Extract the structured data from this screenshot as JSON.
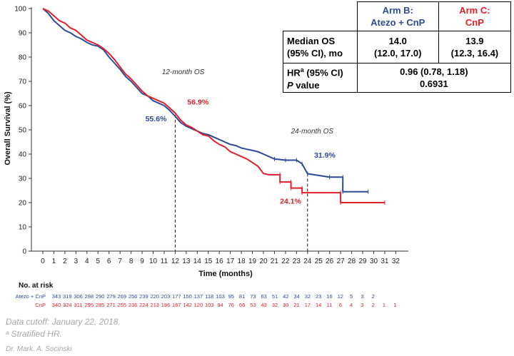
{
  "chart_data": {
    "type": "line",
    "ylabel": "Overall Survival (%)",
    "xlabel": "Time (months)",
    "xlim": [
      0,
      32
    ],
    "ylim": [
      0,
      100
    ],
    "x_ticks": [
      0,
      1,
      2,
      3,
      4,
      5,
      6,
      7,
      8,
      9,
      10,
      11,
      12,
      13,
      14,
      15,
      16,
      17,
      18,
      19,
      20,
      21,
      22,
      23,
      24,
      25,
      26,
      27,
      28,
      29,
      30,
      31,
      32
    ],
    "y_ticks": [
      0,
      10,
      20,
      30,
      40,
      50,
      60,
      70,
      80,
      90,
      100
    ],
    "series": [
      {
        "name": "Atezo + CnP",
        "color": "#2e4a9a",
        "points": [
          [
            0,
            100
          ],
          [
            0.5,
            98
          ],
          [
            1,
            95
          ],
          [
            1.5,
            93
          ],
          [
            2,
            91
          ],
          [
            2.5,
            90
          ],
          [
            3,
            88.5
          ],
          [
            3.5,
            87.5
          ],
          [
            4,
            86
          ],
          [
            4.5,
            85
          ],
          [
            5,
            84.5
          ],
          [
            5.5,
            83
          ],
          [
            6,
            80
          ],
          [
            6.5,
            77.5
          ],
          [
            7,
            75
          ],
          [
            7.5,
            72
          ],
          [
            8,
            70
          ],
          [
            8.5,
            67.5
          ],
          [
            9,
            65
          ],
          [
            9.5,
            64
          ],
          [
            10,
            62
          ],
          [
            10.5,
            61
          ],
          [
            11,
            60
          ],
          [
            11.5,
            58
          ],
          [
            12,
            55.6
          ],
          [
            12.5,
            53
          ],
          [
            13,
            51.5
          ],
          [
            13.5,
            50.5
          ],
          [
            14,
            49.5
          ],
          [
            14.5,
            48.5
          ],
          [
            15,
            48
          ],
          [
            15.5,
            47
          ],
          [
            16,
            46
          ],
          [
            16.5,
            45
          ],
          [
            17,
            44
          ],
          [
            17.5,
            43.5
          ],
          [
            18,
            42.5
          ],
          [
            18.5,
            42
          ],
          [
            19,
            41.5
          ],
          [
            19.5,
            41
          ],
          [
            20,
            40
          ],
          [
            20.5,
            39
          ],
          [
            21,
            38
          ],
          [
            22,
            37.5
          ],
          [
            23,
            37.5
          ],
          [
            23.5,
            36
          ],
          [
            24,
            31.9
          ],
          [
            26,
            30.5
          ],
          [
            27.2,
            30.5
          ],
          [
            27.2,
            24.5
          ],
          [
            29.5,
            24.5
          ]
        ]
      },
      {
        "name": "CnP",
        "color": "#e0202a",
        "points": [
          [
            0,
            100
          ],
          [
            0.5,
            99
          ],
          [
            1,
            97
          ],
          [
            1.5,
            95
          ],
          [
            2,
            94
          ],
          [
            2.5,
            92
          ],
          [
            3,
            91
          ],
          [
            3.5,
            89
          ],
          [
            4,
            87
          ],
          [
            4.5,
            86
          ],
          [
            5,
            85
          ],
          [
            5.5,
            83.5
          ],
          [
            6,
            81.5
          ],
          [
            6.5,
            79
          ],
          [
            7,
            76
          ],
          [
            7.5,
            73
          ],
          [
            8,
            71
          ],
          [
            8.5,
            68.5
          ],
          [
            9,
            66
          ],
          [
            9.5,
            64
          ],
          [
            10,
            63
          ],
          [
            10.5,
            62
          ],
          [
            11,
            61
          ],
          [
            11.5,
            59
          ],
          [
            12,
            56.9
          ],
          [
            12.5,
            54
          ],
          [
            13,
            52
          ],
          [
            13.5,
            51
          ],
          [
            14,
            49.5
          ],
          [
            14.5,
            48
          ],
          [
            15,
            47.5
          ],
          [
            15.5,
            45.5
          ],
          [
            16,
            44
          ],
          [
            16.5,
            43
          ],
          [
            17,
            41
          ],
          [
            17.5,
            40
          ],
          [
            18,
            39
          ],
          [
            18.5,
            38
          ],
          [
            19,
            36.5
          ],
          [
            19.5,
            35
          ],
          [
            20,
            32
          ],
          [
            20.5,
            31.5
          ],
          [
            21.5,
            31.5
          ],
          [
            21.5,
            28.5
          ],
          [
            22.5,
            28.5
          ],
          [
            22.5,
            26
          ],
          [
            23.5,
            26
          ],
          [
            23.5,
            24.1
          ],
          [
            27,
            24.1
          ],
          [
            27,
            20
          ],
          [
            31,
            20
          ]
        ]
      }
    ],
    "annotations": {
      "os12_label": "12-month OS",
      "os24_label": "24-month OS",
      "b_12": "55.6%",
      "c_12": "56.9%",
      "b_24": "31.9%",
      "c_24": "24.1%"
    },
    "risk_table": {
      "title": "No. at risk",
      "rows": [
        {
          "label": "Atezo + CnP",
          "color": "#2e4a9a",
          "values": [
            "343",
            "319",
            "306",
            "298",
            "290",
            "279",
            "269",
            "256",
            "239",
            "220",
            "203",
            "177",
            "150",
            "137",
            "118",
            "103",
            "95",
            "81",
            "73",
            "63",
            "51",
            "42",
            "34",
            "32",
            "23",
            "16",
            "12",
            "5",
            "3",
            "2"
          ]
        },
        {
          "label": "CnP",
          "color": "#e0202a",
          "values": [
            "340",
            "324",
            "311",
            "295",
            "285",
            "271",
            "255",
            "236",
            "224",
            "213",
            "196",
            "167",
            "142",
            "120",
            "103",
            "94",
            "76",
            "66",
            "53",
            "43",
            "32",
            "30",
            "21",
            "17",
            "14",
            "11",
            "6",
            "4",
            "3",
            "2",
            "1",
            "1"
          ]
        }
      ]
    }
  },
  "table": {
    "armB_line1": "Arm B:",
    "armB_line2": "Atezo + CnP",
    "armC_line1": "Arm C:",
    "armC_line2": "CnP",
    "row1_label_1": "Median OS",
    "row1_label_2": "(95% CI), mo",
    "row1_b_1": "14.0",
    "row1_b_2": "(12.0, 17.0)",
    "row1_c_1": "13.9",
    "row1_c_2": "(12.3, 16.4)",
    "row2_label_1a": "HR",
    "row2_label_1sup": "a",
    "row2_label_1b": " (95% CI)",
    "row2_label_2": "P",
    "row2_label_2b": " value",
    "row2_val_1": "0.96 (0.78, 1.18)",
    "row2_val_2": "0.6931"
  },
  "footer": {
    "cutoff": "Data cutoff: January 22, 2018.",
    "note": "ᵃ Stratified HR.",
    "credit": "Dr. Mark. A. Socinski"
  }
}
